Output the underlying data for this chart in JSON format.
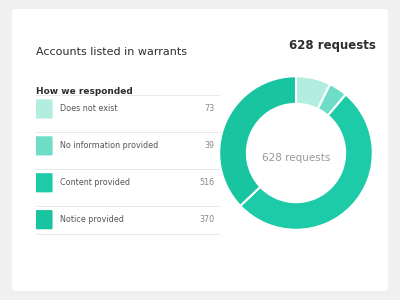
{
  "title": "Accounts listed in warrants",
  "total_label": "628 requests",
  "total": 628,
  "subtitle": "How we responded",
  "categories": [
    "Does not exist",
    "No information provided",
    "Content provided",
    "Notice provided"
  ],
  "values": [
    73,
    39,
    516,
    370
  ],
  "colors": [
    "#b2ede0",
    "#6eddc8",
    "#1ecba8",
    "#19c4a0"
  ],
  "center_text": "628 requests",
  "bg_color": "#f0f0f0",
  "card_color": "#ffffff",
  "title_color": "#2d2d2d",
  "subtitle_color": "#2d2d2d",
  "label_color": "#888888",
  "value_color": "#888888",
  "total_right_color": "#2d2d2d"
}
